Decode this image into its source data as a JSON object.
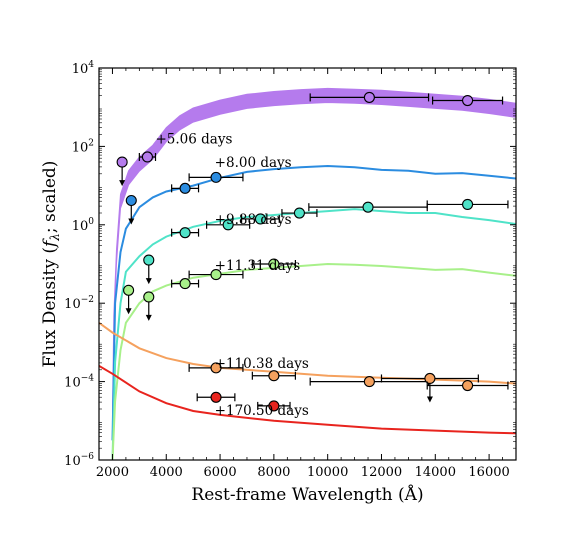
{
  "chart_data": {
    "type": "scatter",
    "xlabel": "Rest-frame Wavelength (Å)",
    "ylabel_parts": [
      "Flux Density (",
      "f",
      "λ",
      "; scaled)"
    ],
    "xlim": [
      1500,
      17000
    ],
    "ylim_log10": [
      -6,
      4
    ],
    "y_scale": "log",
    "x_ticks": [
      2000,
      4000,
      6000,
      8000,
      10000,
      12000,
      14000,
      16000
    ],
    "x_tick_labels": [
      "2000",
      "4000",
      "6000",
      "8000",
      "10000",
      "12000",
      "14000",
      "16000"
    ],
    "y_ticks_log10": [
      -6,
      -4,
      -2,
      0,
      2,
      4
    ],
    "y_tick_base": "10",
    "y_tick_exponents": [
      "−6",
      "−4",
      "−2",
      "0",
      "2",
      "4"
    ],
    "grid": false,
    "series": [
      {
        "name": "+5.06 days",
        "color": "#b57bed",
        "label_at": [
          3600,
          2.08
        ],
        "model": {
          "style": "band",
          "width": 0.18,
          "logy": [
            [
              2000,
              -5.0
            ],
            [
              2050,
              -2.5
            ],
            [
              2150,
              -0.8
            ],
            [
              2300,
              0.6
            ],
            [
              2600,
              1.2
            ],
            [
              3000,
              1.55
            ],
            [
              3500,
              1.85
            ],
            [
              4000,
              2.3
            ],
            [
              4500,
              2.6
            ],
            [
              5000,
              2.8
            ],
            [
              6000,
              3.0
            ],
            [
              7000,
              3.15
            ],
            [
              8000,
              3.22
            ],
            [
              9000,
              3.27
            ],
            [
              10000,
              3.3
            ],
            [
              11000,
              3.28
            ],
            [
              12000,
              3.25
            ],
            [
              13000,
              3.2
            ],
            [
              14000,
              3.15
            ],
            [
              15000,
              3.1
            ],
            [
              16000,
              3.02
            ],
            [
              17000,
              2.92
            ]
          ]
        },
        "points": [
          {
            "x": 2360,
            "y_log10": 1.6,
            "upper_limit": true
          },
          {
            "x": 3300,
            "y_log10": 1.73,
            "xerr": 300
          },
          {
            "x": 11550,
            "y_log10": 3.25,
            "xerr": 2200
          },
          {
            "x": 15200,
            "y_log10": 3.17,
            "xerr": 1300
          }
        ]
      },
      {
        "name": "+8.00 days",
        "color": "#2b8ce0",
        "label_at": [
          5800,
          1.47
        ],
        "model": {
          "style": "line",
          "logy": [
            [
              2000,
              -5.5
            ],
            [
              2100,
              -2.0
            ],
            [
              2300,
              -0.7
            ],
            [
              2500,
              -0.1
            ],
            [
              3000,
              0.45
            ],
            [
              3500,
              0.7
            ],
            [
              4000,
              0.85
            ],
            [
              5000,
              1.0
            ],
            [
              6000,
              1.2
            ],
            [
              7000,
              1.35
            ],
            [
              8000,
              1.42
            ],
            [
              9000,
              1.47
            ],
            [
              10000,
              1.5
            ],
            [
              11000,
              1.47
            ],
            [
              12000,
              1.4
            ],
            [
              13000,
              1.38
            ],
            [
              14000,
              1.3
            ],
            [
              15000,
              1.32
            ],
            [
              16000,
              1.25
            ],
            [
              17000,
              1.18
            ]
          ]
        },
        "points": [
          {
            "x": 2700,
            "y_log10": 0.62,
            "upper_limit": true
          },
          {
            "x": 4700,
            "y_log10": 0.93,
            "xerr": 500
          },
          {
            "x": 5850,
            "y_log10": 1.21,
            "xerr": 1000
          }
        ]
      },
      {
        "name": "+9.88 days",
        "color": "#4fe3c8",
        "label_at": [
          5800,
          0.02
        ],
        "model": {
          "style": "line",
          "logy": [
            [
              2000,
              -6.0
            ],
            [
              2100,
              -3.5
            ],
            [
              2300,
              -2.0
            ],
            [
              2500,
              -1.2
            ],
            [
              3000,
              -0.8
            ],
            [
              3500,
              -0.5
            ],
            [
              4000,
              -0.3
            ],
            [
              5000,
              -0.05
            ],
            [
              6000,
              0.1
            ],
            [
              7000,
              0.2
            ],
            [
              8000,
              0.25
            ],
            [
              9000,
              0.3
            ],
            [
              10000,
              0.35
            ],
            [
              11000,
              0.4
            ],
            [
              12000,
              0.35
            ],
            [
              13000,
              0.3
            ],
            [
              14000,
              0.3
            ],
            [
              15000,
              0.2
            ],
            [
              16000,
              0.12
            ],
            [
              17000,
              0.02
            ]
          ]
        },
        "points": [
          {
            "x": 3350,
            "y_log10": -0.9,
            "upper_limit": true
          },
          {
            "x": 4700,
            "y_log10": -0.2,
            "xerr": 500
          },
          {
            "x": 6300,
            "y_log10": 0.0,
            "xerr": 800
          },
          {
            "x": 7500,
            "y_log10": 0.15,
            "xerr": 700
          },
          {
            "x": 8950,
            "y_log10": 0.3,
            "xerr": 650
          },
          {
            "x": 11500,
            "y_log10": 0.45,
            "xerr": 2200
          },
          {
            "x": 15200,
            "y_log10": 0.52,
            "xerr": 1500
          }
        ]
      },
      {
        "name": "+11.31 days",
        "color": "#a8f08a",
        "label_at": [
          5800,
          -1.15
        ],
        "model": {
          "style": "line",
          "logy": [
            [
              2000,
              -6.0
            ],
            [
              2100,
              -4.5
            ],
            [
              2300,
              -3.2
            ],
            [
              2500,
              -2.5
            ],
            [
              3000,
              -2.0
            ],
            [
              3500,
              -1.7
            ],
            [
              4000,
              -1.55
            ],
            [
              5000,
              -1.35
            ],
            [
              6000,
              -1.25
            ],
            [
              7000,
              -1.15
            ],
            [
              8000,
              -1.1
            ],
            [
              9000,
              -1.05
            ],
            [
              10000,
              -1.0
            ],
            [
              11000,
              -1.02
            ],
            [
              12000,
              -1.05
            ],
            [
              13000,
              -1.1
            ],
            [
              14000,
              -1.15
            ],
            [
              15000,
              -1.13
            ],
            [
              16000,
              -1.22
            ],
            [
              17000,
              -1.3
            ]
          ]
        },
        "points": [
          {
            "x": 2600,
            "y_log10": -1.67,
            "upper_limit": true
          },
          {
            "x": 3350,
            "y_log10": -1.84,
            "upper_limit": true
          },
          {
            "x": 4700,
            "y_log10": -1.5,
            "xerr": 500
          },
          {
            "x": 5850,
            "y_log10": -1.27,
            "xerr": 1000
          },
          {
            "x": 8000,
            "y_log10": -1.0,
            "xerr": 800
          }
        ]
      },
      {
        "name": "+110.38 days",
        "color": "#f5a15e",
        "label_at": [
          5800,
          -3.65
        ],
        "model": {
          "style": "line",
          "logy": [
            [
              1500,
              -2.5
            ],
            [
              2000,
              -2.75
            ],
            [
              3000,
              -3.15
            ],
            [
              4000,
              -3.4
            ],
            [
              5000,
              -3.55
            ],
            [
              6000,
              -3.65
            ],
            [
              8000,
              -3.75
            ],
            [
              10000,
              -3.85
            ],
            [
              12000,
              -3.9
            ],
            [
              14000,
              -3.95
            ],
            [
              16000,
              -4.0
            ],
            [
              17000,
              -4.05
            ]
          ]
        },
        "points": [
          {
            "x": 5850,
            "y_log10": -3.65,
            "xerr": 1000
          },
          {
            "x": 8000,
            "y_log10": -3.85,
            "xerr": 800
          },
          {
            "x": 11550,
            "y_log10": -4.0,
            "xerr": 2200
          },
          {
            "x": 13800,
            "y_log10": -3.92,
            "xerr": 1800,
            "upper_limit": true
          },
          {
            "x": 15200,
            "y_log10": -4.1,
            "xerr": 1500
          }
        ]
      },
      {
        "name": "+170.50 days",
        "color": "#e8241e",
        "label_at": [
          5800,
          -4.85
        ],
        "model": {
          "style": "line",
          "logy": [
            [
              1500,
              -3.6
            ],
            [
              2000,
              -3.8
            ],
            [
              3000,
              -4.25
            ],
            [
              4000,
              -4.55
            ],
            [
              5000,
              -4.75
            ],
            [
              6000,
              -4.85
            ],
            [
              8000,
              -5.0
            ],
            [
              10000,
              -5.1
            ],
            [
              12000,
              -5.2
            ],
            [
              14000,
              -5.25
            ],
            [
              16000,
              -5.3
            ],
            [
              17000,
              -5.32
            ]
          ]
        },
        "points": [
          {
            "x": 5850,
            "y_log10": -4.4,
            "xerr": 700
          },
          {
            "x": 8000,
            "y_log10": -4.62,
            "xerr": 600
          }
        ]
      }
    ]
  }
}
